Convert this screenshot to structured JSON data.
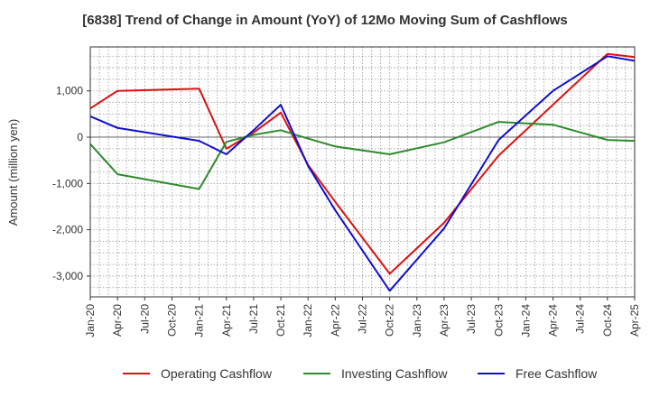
{
  "chart_data": {
    "type": "line",
    "title": "[6838]  Trend of Change in Amount (YoY) of 12Mo Moving Sum of Cashflows",
    "xlabel": "",
    "ylabel": "Amount (million yen)",
    "ylim": [
      -3450,
      1950
    ],
    "yticks": [
      1000,
      0,
      -1000,
      -2000,
      -3000
    ],
    "ytick_labels": [
      "1,000",
      "0",
      "-1,000",
      "-2,000",
      "-3,000"
    ],
    "xlim": [
      0,
      60
    ],
    "xticks": [
      0,
      3,
      6,
      9,
      12,
      15,
      18,
      21,
      24,
      27,
      30,
      33,
      36,
      39,
      42,
      45,
      48,
      51,
      54,
      57,
      60
    ],
    "xtick_labels": [
      "Jan-20",
      "Apr-20",
      "Jul-20",
      "Oct-20",
      "Jan-21",
      "Apr-21",
      "Jul-21",
      "Oct-21",
      "Jan-22",
      "Apr-22",
      "Jul-22",
      "Oct-22",
      "Jan-23",
      "Apr-23",
      "Jul-23",
      "Oct-23",
      "Jan-24",
      "Apr-24",
      "Jul-24",
      "Oct-24",
      "Apr-25"
    ],
    "xtick_labels_note": "",
    "grid": true,
    "legend_position": "bottom",
    "series": [
      {
        "name": "Operating Cashflow",
        "color": "#dd1111",
        "points": [
          [
            0,
            620
          ],
          [
            3,
            1000
          ],
          [
            12,
            1050
          ],
          [
            15,
            -250
          ],
          [
            18,
            100
          ],
          [
            21,
            530
          ],
          [
            24,
            -600
          ],
          [
            27,
            -1400
          ],
          [
            33,
            -2950
          ],
          [
            39,
            -1850
          ],
          [
            45,
            -400
          ],
          [
            51,
            700
          ],
          [
            57,
            1800
          ],
          [
            60,
            1730
          ]
        ]
      },
      {
        "name": "Investing Cashflow",
        "color": "#2e8b2e",
        "points": [
          [
            0,
            -150
          ],
          [
            3,
            -800
          ],
          [
            12,
            -1120
          ],
          [
            15,
            -100
          ],
          [
            18,
            50
          ],
          [
            21,
            150
          ],
          [
            24,
            -30
          ],
          [
            27,
            -200
          ],
          [
            33,
            -370
          ],
          [
            39,
            -110
          ],
          [
            45,
            330
          ],
          [
            51,
            270
          ],
          [
            57,
            -60
          ],
          [
            60,
            -80
          ]
        ]
      },
      {
        "name": "Free Cashflow",
        "color": "#1010cc",
        "points": [
          [
            0,
            450
          ],
          [
            3,
            200
          ],
          [
            12,
            -80
          ],
          [
            15,
            -370
          ],
          [
            18,
            150
          ],
          [
            21,
            700
          ],
          [
            24,
            -620
          ],
          [
            27,
            -1580
          ],
          [
            33,
            -3320
          ],
          [
            39,
            -1970
          ],
          [
            45,
            -60
          ],
          [
            51,
            1000
          ],
          [
            57,
            1750
          ],
          [
            60,
            1650
          ]
        ]
      }
    ]
  }
}
